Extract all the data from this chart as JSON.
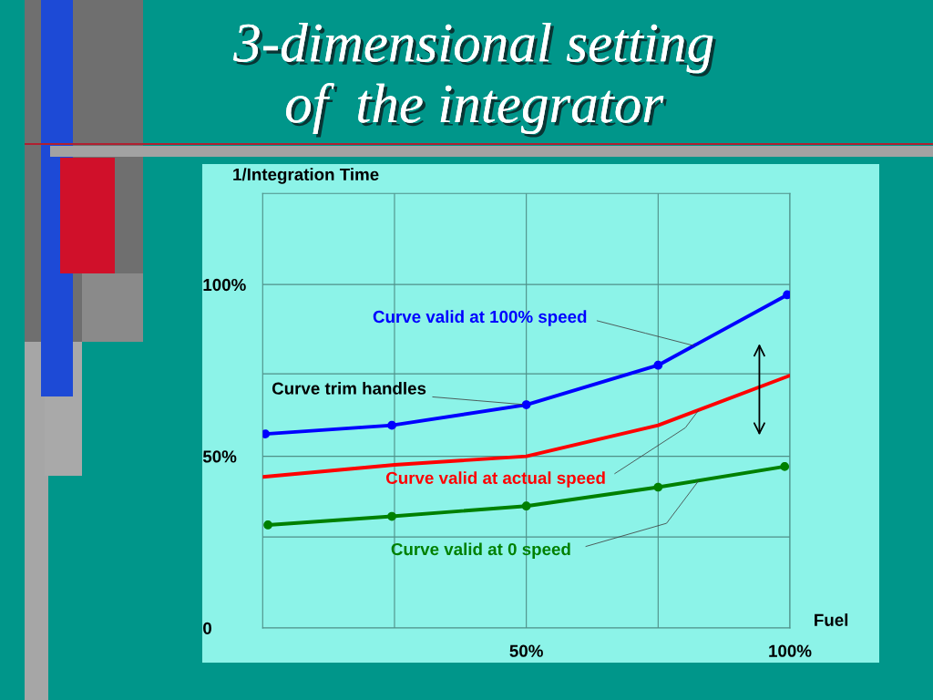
{
  "chart_data": {
    "type": "line",
    "title": "3-dimensional setting\nof  the integrator",
    "xlabel": "Fuel",
    "ylabel": "1/Integration Time",
    "xlim": [
      0,
      100
    ],
    "ylim": [
      0,
      126.5
    ],
    "xticks": [
      {
        "value": 25,
        "label": null
      },
      {
        "value": 50,
        "label": "50%"
      },
      {
        "value": 75,
        "label": null
      },
      {
        "value": 100,
        "label": "100%"
      }
    ],
    "yticks": [
      0,
      {
        "value": 26.5,
        "label": null
      },
      {
        "value": 50,
        "label": "50%"
      },
      {
        "value": 74,
        "label": null
      },
      {
        "value": 100,
        "label": "100%"
      }
    ],
    "grid": true,
    "marker": "circle",
    "line_style": "solid",
    "series": [
      {
        "name": "Curve valid at 100% speed",
        "color": "#0000ff",
        "x": [
          0.5,
          24.5,
          50,
          75,
          99.5
        ],
        "values": [
          56.5,
          59,
          65,
          76.5,
          97
        ]
      },
      {
        "name": "Curve valid at actual speed",
        "color": "#ff0000",
        "marker": "none",
        "x": [
          0,
          25,
          50,
          75,
          100
        ],
        "values": [
          44,
          47.5,
          50,
          59,
          73.5
        ]
      },
      {
        "name": "Curve valid at 0 speed",
        "color": "#008000",
        "x": [
          1,
          24.5,
          50,
          75,
          99
        ],
        "values": [
          30,
          32.5,
          35.5,
          41,
          47
        ]
      }
    ],
    "annotations": [
      {
        "text": "Curve trim handles",
        "x": 50,
        "y": 65
      }
    ]
  }
}
